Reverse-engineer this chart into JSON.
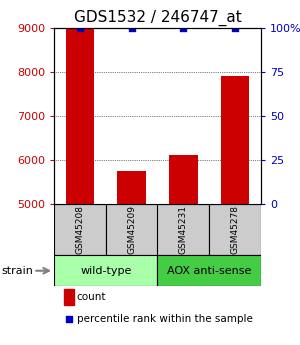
{
  "title": "GDS1532 / 246747_at",
  "samples": [
    "GSM45208",
    "GSM45209",
    "GSM45231",
    "GSM45278"
  ],
  "counts": [
    9000,
    5750,
    6100,
    7900
  ],
  "percentiles": [
    100,
    100,
    100,
    100
  ],
  "ylim_left": [
    5000,
    9000
  ],
  "ylim_right": [
    0,
    100
  ],
  "yticks_left": [
    5000,
    6000,
    7000,
    8000,
    9000
  ],
  "yticks_right": [
    0,
    25,
    50,
    75,
    100
  ],
  "ytick_labels_right": [
    "0",
    "25",
    "50",
    "75",
    "100%"
  ],
  "bar_color": "#cc0000",
  "dot_color": "#0000cc",
  "bar_width": 0.55,
  "groups": [
    {
      "label": "wild-type",
      "color": "#aaffaa",
      "start": 0,
      "end": 2
    },
    {
      "label": "AOX anti-sense",
      "color": "#44cc44",
      "start": 2,
      "end": 4
    }
  ],
  "strain_label": "strain",
  "legend_count_color": "#cc0000",
  "legend_pct_color": "#0000cc",
  "background_color": "#ffffff",
  "sample_box_color": "#cccccc",
  "title_fontsize": 11,
  "tick_fontsize": 8,
  "sample_fontsize": 6.5,
  "group_fontsize": 8,
  "legend_fontsize": 7.5
}
